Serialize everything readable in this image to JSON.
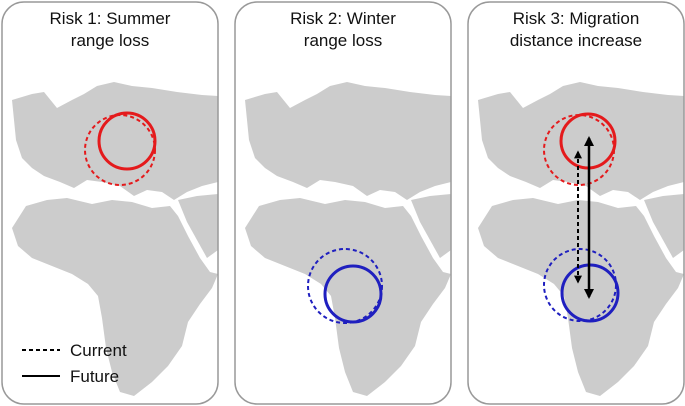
{
  "panels": [
    {
      "title_lines": [
        "Risk 1: Summer",
        "range loss"
      ]
    },
    {
      "title_lines": [
        "Risk 2: Winter",
        "range loss"
      ]
    },
    {
      "title_lines": [
        "Risk 3: Migration",
        "distance increase"
      ]
    }
  ],
  "legend": {
    "current": "Current",
    "future": "Future"
  }
}
